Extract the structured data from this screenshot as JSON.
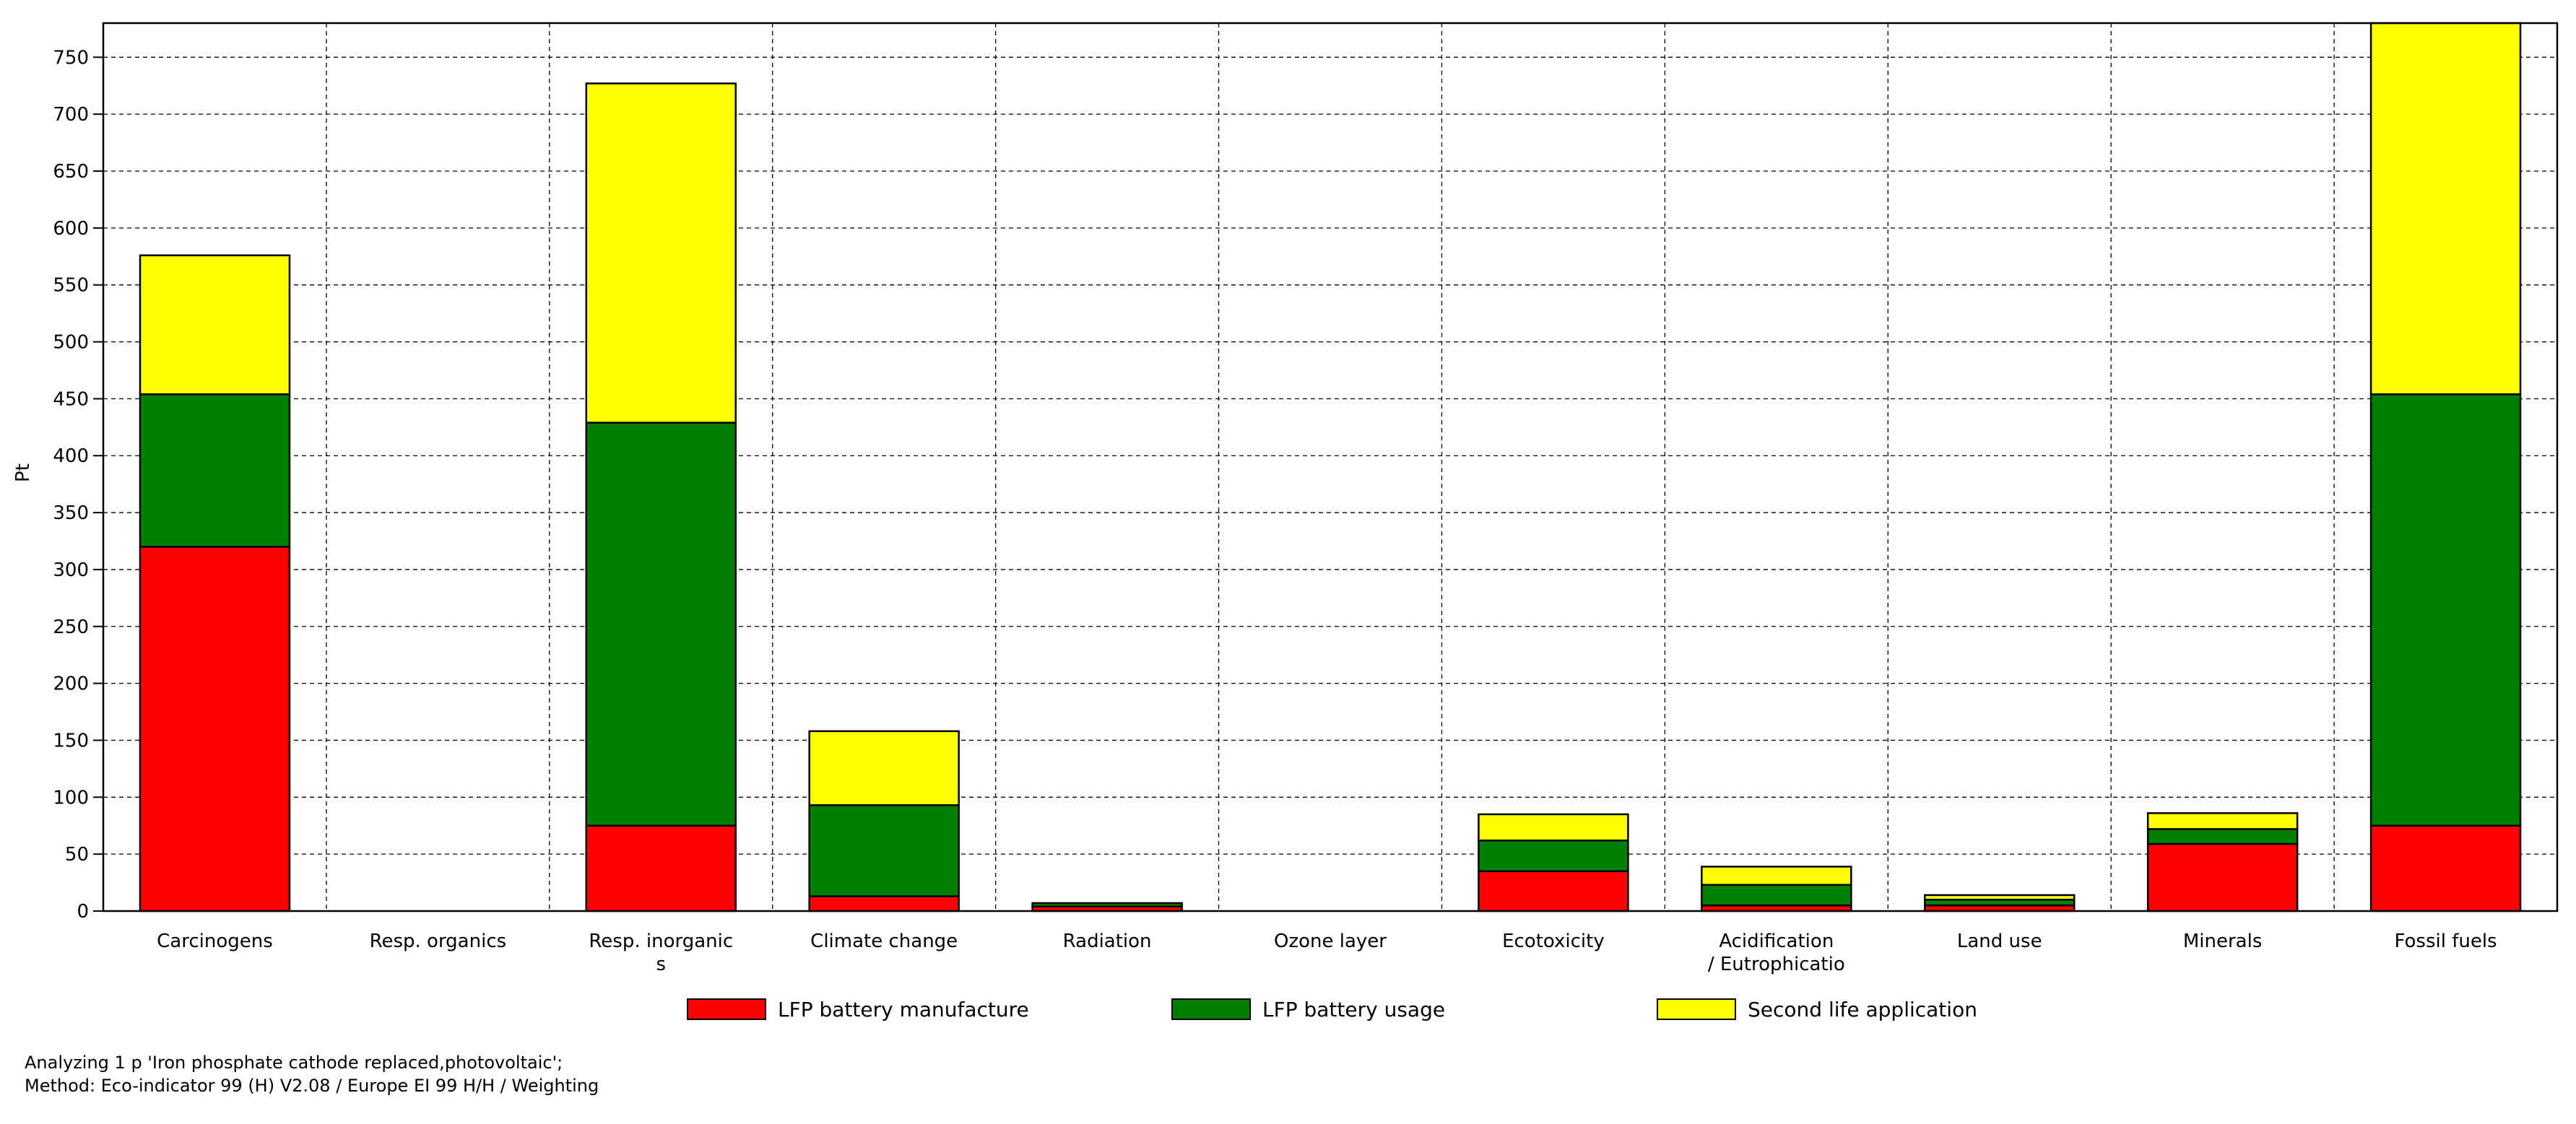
{
  "chart_data": {
    "type": "bar",
    "stacked": true,
    "ylabel": "Pt",
    "ylim": [
      0,
      780
    ],
    "yticks": [
      0,
      50,
      100,
      150,
      200,
      250,
      300,
      350,
      400,
      450,
      500,
      550,
      600,
      650,
      700,
      750
    ],
    "categories": [
      "Carcinogens",
      "Resp. organics",
      "Resp. inorganic\ns",
      "Climate change",
      "Radiation",
      "Ozone layer",
      "Ecotoxicity",
      "Acidification\n/ Eutrophicatio",
      "Land use",
      "Minerals",
      "Fossil fuels"
    ],
    "series": [
      {
        "name": "LFP battery manufacture",
        "color": "#ff0000",
        "values": [
          320,
          0,
          75,
          13,
          4,
          0,
          35,
          5,
          5,
          59,
          75
        ]
      },
      {
        "name": "LFP battery usage",
        "color": "#008000",
        "values": [
          134,
          0,
          354,
          80,
          3,
          0,
          27,
          18,
          5,
          13,
          379
        ]
      },
      {
        "name": "Second life application",
        "color": "#ffff00",
        "values": [
          122,
          0,
          298,
          65,
          0,
          0,
          23,
          16,
          4,
          14,
          326
        ]
      }
    ],
    "grid": true,
    "legend_position": "bottom"
  },
  "footer": {
    "line1": "Analyzing 1 p 'Iron phosphate cathode replaced,photovoltaic';",
    "line2": "Method: Eco-indicator 99 (H) V2.08 / Europe EI 99 H/H / Weighting"
  }
}
